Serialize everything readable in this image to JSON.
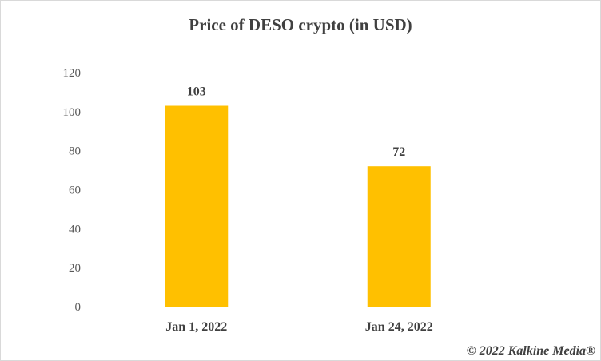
{
  "chart_data": {
    "type": "bar",
    "title": "Price of DESO crypto (in USD)",
    "xlabel": "",
    "ylabel": "",
    "categories": [
      "Jan 1, 2022",
      "Jan 24, 2022"
    ],
    "values": [
      103,
      72
    ],
    "data_labels": [
      "103",
      "72"
    ],
    "ylim": [
      0,
      120
    ],
    "yticks": [
      0,
      20,
      40,
      60,
      80,
      100,
      120
    ],
    "grid": false,
    "legend": "none",
    "bar_color": "#FFC000",
    "axis_color": "#d9d9d9"
  },
  "watermark": "© 2022 Kalkine Media®"
}
